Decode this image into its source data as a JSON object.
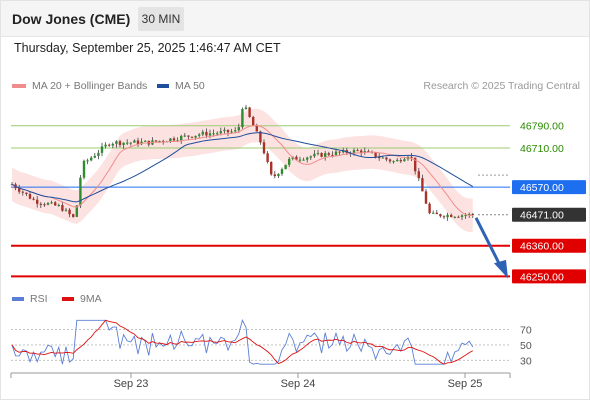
{
  "header": {
    "title": "Dow Jones (CME)",
    "timeframe": "30 MIN"
  },
  "datetime": "Thursday, September 25, 2025 1:46:47 AM CET",
  "legend": {
    "items": [
      {
        "label": "MA 20 + Bollinger Bands",
        "color": "#f08c8c"
      },
      {
        "label": "MA 50",
        "color": "#1f4e9c"
      }
    ],
    "credit": "Research © 2025 Trading Central"
  },
  "rsi_legend": {
    "items": [
      {
        "label": "RSI",
        "color": "#5b7fd6"
      },
      {
        "label": "9MA",
        "color": "#e01010"
      }
    ]
  },
  "chart_data": {
    "type": "candlestick",
    "x_labels": [
      "Sep 23",
      "Sep 24",
      "Sep 25"
    ],
    "ylim": [
      46230,
      46900
    ],
    "levels": [
      {
        "value": 46790.0,
        "label": "46790.00",
        "kind": "resistance",
        "color": "#9ccc70"
      },
      {
        "value": 46710.0,
        "label": "46710.00",
        "kind": "resistance",
        "color": "#9ccc70"
      },
      {
        "value": 46570.0,
        "label": "46570.00",
        "kind": "pivot",
        "color": "#1e6ff0"
      },
      {
        "value": 46471.0,
        "label": "46471.00",
        "kind": "last",
        "color": "#333333"
      },
      {
        "value": 46360.0,
        "label": "46360.00",
        "kind": "support",
        "color": "#e00000"
      },
      {
        "value": 46250.0,
        "label": "46250.00",
        "kind": "support",
        "color": "#e00000"
      }
    ],
    "last_price": 46471.0,
    "rsi": {
      "ticks": [
        70,
        50,
        30
      ],
      "ylim": [
        20,
        85
      ]
    }
  }
}
